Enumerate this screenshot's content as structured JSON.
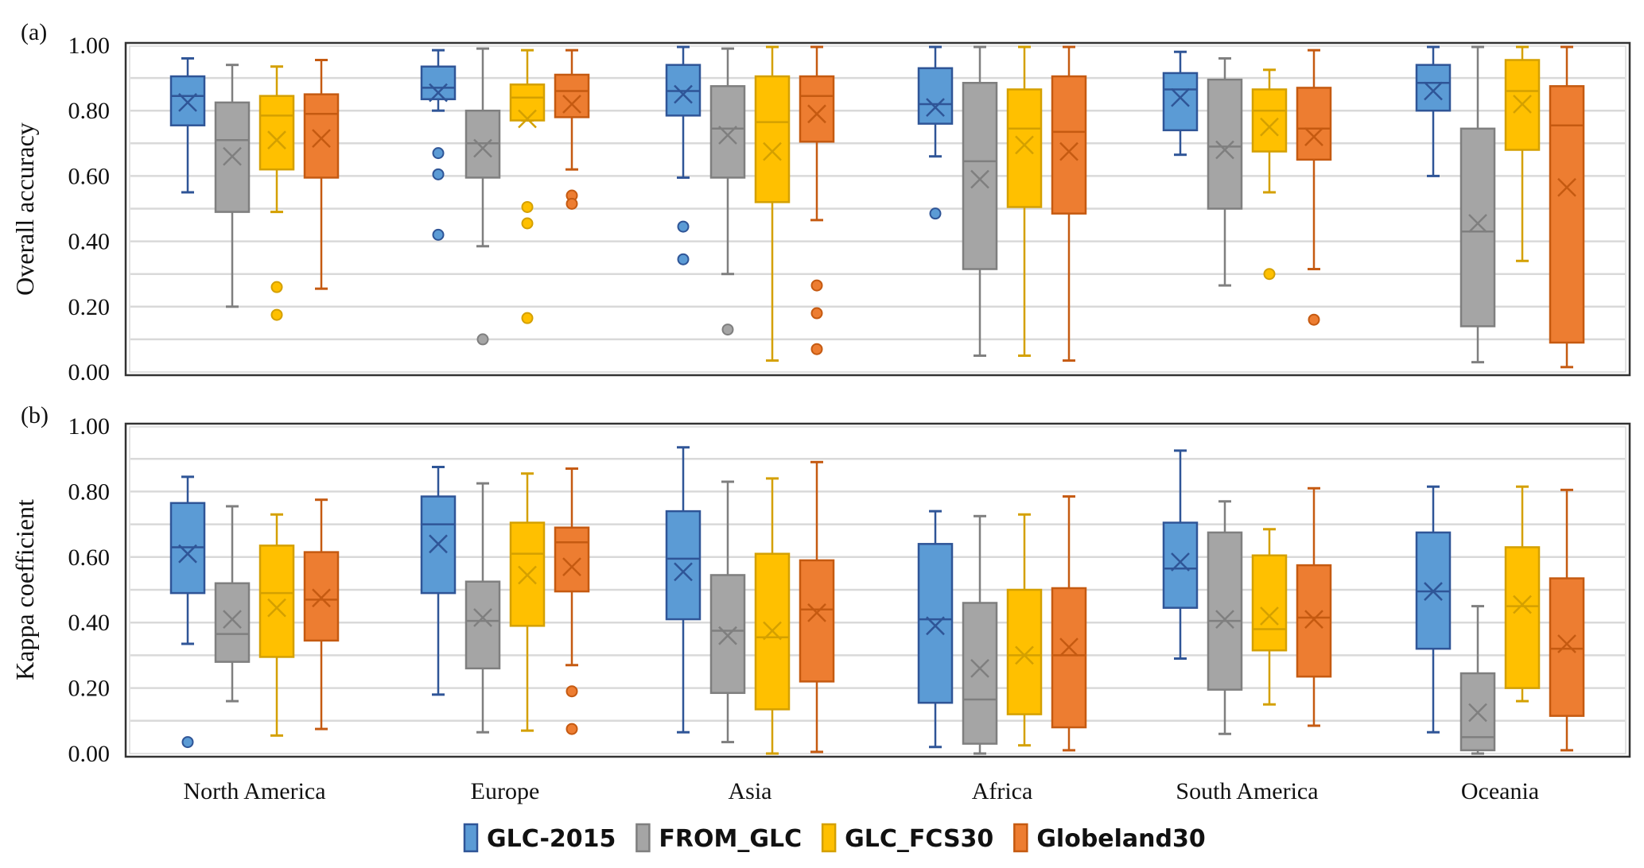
{
  "figure": {
    "legend": [
      {
        "name": "GLC-2015",
        "fill": "#5B9BD5",
        "stroke": "#2F5597"
      },
      {
        "name": "FROM_GLC",
        "fill": "#A5A5A5",
        "stroke": "#7F7F7F"
      },
      {
        "name": "GLC_FCS30",
        "fill": "#FFC000",
        "stroke": "#D4A000"
      },
      {
        "name": "Globeland30",
        "fill": "#ED7D31",
        "stroke": "#C55A11"
      }
    ]
  },
  "chart_data": [
    {
      "type": "box",
      "panel_label": "(a)",
      "title": "",
      "xlabel": "",
      "ylabel": "Overall accuracy",
      "ylim": [
        0,
        1
      ],
      "yticks": [
        "0.00",
        "0.20",
        "0.40",
        "0.60",
        "0.80",
        "1.00"
      ],
      "grid": true,
      "categories": [
        "North America",
        "Europe",
        "Asia",
        "Africa",
        "South America",
        "Oceania"
      ],
      "series": [
        {
          "name": "GLC-2015",
          "boxes": [
            {
              "min": 0.55,
              "q1": 0.755,
              "median": 0.845,
              "q3": 0.905,
              "max": 0.96,
              "mean": 0.825,
              "outliers": []
            },
            {
              "min": 0.8,
              "q1": 0.835,
              "median": 0.87,
              "q3": 0.935,
              "max": 0.985,
              "mean": 0.855,
              "outliers": [
                0.67,
                0.605,
                0.42
              ]
            },
            {
              "min": 0.595,
              "q1": 0.785,
              "median": 0.86,
              "q3": 0.94,
              "max": 0.995,
              "mean": 0.85,
              "outliers": [
                0.445,
                0.345
              ]
            },
            {
              "min": 0.66,
              "q1": 0.76,
              "median": 0.82,
              "q3": 0.93,
              "max": 0.995,
              "mean": 0.81,
              "outliers": [
                0.485
              ]
            },
            {
              "min": 0.665,
              "q1": 0.74,
              "median": 0.865,
              "q3": 0.915,
              "max": 0.98,
              "mean": 0.84,
              "outliers": []
            },
            {
              "min": 0.6,
              "q1": 0.8,
              "median": 0.885,
              "q3": 0.94,
              "max": 0.995,
              "mean": 0.86,
              "outliers": []
            }
          ]
        },
        {
          "name": "FROM_GLC",
          "boxes": [
            {
              "min": 0.2,
              "q1": 0.49,
              "median": 0.71,
              "q3": 0.825,
              "max": 0.94,
              "mean": 0.66,
              "outliers": []
            },
            {
              "min": 0.385,
              "q1": 0.595,
              "median": 0.7,
              "q3": 0.8,
              "max": 0.99,
              "mean": 0.685,
              "outliers": [
                0.1
              ]
            },
            {
              "min": 0.3,
              "q1": 0.595,
              "median": 0.745,
              "q3": 0.875,
              "max": 0.99,
              "mean": 0.725,
              "outliers": [
                0.13
              ]
            },
            {
              "min": 0.05,
              "q1": 0.315,
              "median": 0.645,
              "q3": 0.885,
              "max": 0.995,
              "mean": 0.59,
              "outliers": []
            },
            {
              "min": 0.265,
              "q1": 0.5,
              "median": 0.69,
              "q3": 0.895,
              "max": 0.96,
              "mean": 0.68,
              "outliers": []
            },
            {
              "min": 0.03,
              "q1": 0.14,
              "median": 0.43,
              "q3": 0.745,
              "max": 0.995,
              "mean": 0.455,
              "outliers": []
            }
          ]
        },
        {
          "name": "GLC_FCS30",
          "boxes": [
            {
              "min": 0.49,
              "q1": 0.62,
              "median": 0.785,
              "q3": 0.845,
              "max": 0.935,
              "mean": 0.71,
              "outliers": [
                0.26,
                0.175
              ]
            },
            {
              "min": 0.77,
              "q1": 0.77,
              "median": 0.84,
              "q3": 0.88,
              "max": 0.985,
              "mean": 0.775,
              "outliers": [
                0.505,
                0.455,
                0.165
              ]
            },
            {
              "min": 0.035,
              "q1": 0.52,
              "median": 0.765,
              "q3": 0.905,
              "max": 0.995,
              "mean": 0.675,
              "outliers": []
            },
            {
              "min": 0.05,
              "q1": 0.505,
              "median": 0.745,
              "q3": 0.865,
              "max": 0.995,
              "mean": 0.695,
              "outliers": []
            },
            {
              "min": 0.55,
              "q1": 0.675,
              "median": 0.8,
              "q3": 0.865,
              "max": 0.925,
              "mean": 0.75,
              "outliers": [
                0.3
              ]
            },
            {
              "min": 0.34,
              "q1": 0.68,
              "median": 0.86,
              "q3": 0.955,
              "max": 0.995,
              "mean": 0.82,
              "outliers": []
            }
          ]
        },
        {
          "name": "Globeland30",
          "boxes": [
            {
              "min": 0.255,
              "q1": 0.595,
              "median": 0.79,
              "q3": 0.85,
              "max": 0.955,
              "mean": 0.715,
              "outliers": []
            },
            {
              "min": 0.62,
              "q1": 0.78,
              "median": 0.86,
              "q3": 0.91,
              "max": 0.985,
              "mean": 0.82,
              "outliers": [
                0.54,
                0.515
              ]
            },
            {
              "min": 0.465,
              "q1": 0.705,
              "median": 0.845,
              "q3": 0.905,
              "max": 0.995,
              "mean": 0.79,
              "outliers": [
                0.265,
                0.18,
                0.07
              ]
            },
            {
              "min": 0.035,
              "q1": 0.485,
              "median": 0.735,
              "q3": 0.905,
              "max": 0.995,
              "mean": 0.675,
              "outliers": []
            },
            {
              "min": 0.315,
              "q1": 0.65,
              "median": 0.745,
              "q3": 0.87,
              "max": 0.985,
              "mean": 0.72,
              "outliers": [
                0.16
              ]
            },
            {
              "min": 0.015,
              "q1": 0.09,
              "median": 0.755,
              "q3": 0.875,
              "max": 0.995,
              "mean": 0.565,
              "outliers": []
            }
          ]
        }
      ]
    },
    {
      "type": "box",
      "panel_label": "(b)",
      "title": "",
      "xlabel": "",
      "ylabel": "Kappa coefficient",
      "ylim": [
        0,
        1
      ],
      "yticks": [
        "0.00",
        "0.20",
        "0.40",
        "0.60",
        "0.80",
        "1.00"
      ],
      "grid": true,
      "categories": [
        "North America",
        "Europe",
        "Asia",
        "Africa",
        "South America",
        "Oceania"
      ],
      "series": [
        {
          "name": "GLC-2015",
          "boxes": [
            {
              "min": 0.335,
              "q1": 0.49,
              "median": 0.63,
              "q3": 0.765,
              "max": 0.845,
              "mean": 0.61,
              "outliers": [
                0.035
              ]
            },
            {
              "min": 0.18,
              "q1": 0.49,
              "median": 0.7,
              "q3": 0.785,
              "max": 0.875,
              "mean": 0.64,
              "outliers": []
            },
            {
              "min": 0.065,
              "q1": 0.41,
              "median": 0.595,
              "q3": 0.74,
              "max": 0.935,
              "mean": 0.555,
              "outliers": []
            },
            {
              "min": 0.02,
              "q1": 0.155,
              "median": 0.41,
              "q3": 0.64,
              "max": 0.74,
              "mean": 0.39,
              "outliers": []
            },
            {
              "min": 0.29,
              "q1": 0.445,
              "median": 0.565,
              "q3": 0.705,
              "max": 0.925,
              "mean": 0.585,
              "outliers": []
            },
            {
              "min": 0.065,
              "q1": 0.32,
              "median": 0.495,
              "q3": 0.675,
              "max": 0.815,
              "mean": 0.495,
              "outliers": []
            }
          ]
        },
        {
          "name": "FROM_GLC",
          "boxes": [
            {
              "min": 0.16,
              "q1": 0.28,
              "median": 0.365,
              "q3": 0.52,
              "max": 0.755,
              "mean": 0.41,
              "outliers": []
            },
            {
              "min": 0.065,
              "q1": 0.26,
              "median": 0.405,
              "q3": 0.525,
              "max": 0.825,
              "mean": 0.415,
              "outliers": []
            },
            {
              "min": 0.035,
              "q1": 0.185,
              "median": 0.375,
              "q3": 0.545,
              "max": 0.83,
              "mean": 0.36,
              "outliers": []
            },
            {
              "min": 0.0,
              "q1": 0.03,
              "median": 0.165,
              "q3": 0.46,
              "max": 0.725,
              "mean": 0.26,
              "outliers": []
            },
            {
              "min": 0.06,
              "q1": 0.195,
              "median": 0.405,
              "q3": 0.675,
              "max": 0.77,
              "mean": 0.41,
              "outliers": []
            },
            {
              "min": 0.0,
              "q1": 0.01,
              "median": 0.05,
              "q3": 0.245,
              "max": 0.45,
              "mean": 0.125,
              "outliers": []
            }
          ]
        },
        {
          "name": "GLC_FCS30",
          "boxes": [
            {
              "min": 0.055,
              "q1": 0.295,
              "median": 0.49,
              "q3": 0.635,
              "max": 0.73,
              "mean": 0.445,
              "outliers": []
            },
            {
              "min": 0.07,
              "q1": 0.39,
              "median": 0.61,
              "q3": 0.705,
              "max": 0.855,
              "mean": 0.545,
              "outliers": []
            },
            {
              "min": 0.0,
              "q1": 0.135,
              "median": 0.355,
              "q3": 0.61,
              "max": 0.84,
              "mean": 0.375,
              "outliers": []
            },
            {
              "min": 0.025,
              "q1": 0.12,
              "median": 0.3,
              "q3": 0.5,
              "max": 0.73,
              "mean": 0.3,
              "outliers": []
            },
            {
              "min": 0.15,
              "q1": 0.315,
              "median": 0.38,
              "q3": 0.605,
              "max": 0.685,
              "mean": 0.42,
              "outliers": []
            },
            {
              "min": 0.16,
              "q1": 0.2,
              "median": 0.45,
              "q3": 0.63,
              "max": 0.815,
              "mean": 0.455,
              "outliers": []
            }
          ]
        },
        {
          "name": "Globeland30",
          "boxes": [
            {
              "min": 0.075,
              "q1": 0.345,
              "median": 0.47,
              "q3": 0.615,
              "max": 0.775,
              "mean": 0.475,
              "outliers": []
            },
            {
              "min": 0.27,
              "q1": 0.495,
              "median": 0.645,
              "q3": 0.69,
              "max": 0.87,
              "mean": 0.57,
              "outliers": [
                0.19,
                0.075
              ]
            },
            {
              "min": 0.005,
              "q1": 0.22,
              "median": 0.44,
              "q3": 0.59,
              "max": 0.89,
              "mean": 0.43,
              "outliers": []
            },
            {
              "min": 0.01,
              "q1": 0.08,
              "median": 0.3,
              "q3": 0.505,
              "max": 0.785,
              "mean": 0.325,
              "outliers": []
            },
            {
              "min": 0.085,
              "q1": 0.235,
              "median": 0.415,
              "q3": 0.575,
              "max": 0.81,
              "mean": 0.41,
              "outliers": []
            },
            {
              "min": 0.01,
              "q1": 0.115,
              "median": 0.32,
              "q3": 0.535,
              "max": 0.805,
              "mean": 0.335,
              "outliers": []
            }
          ]
        }
      ]
    }
  ]
}
